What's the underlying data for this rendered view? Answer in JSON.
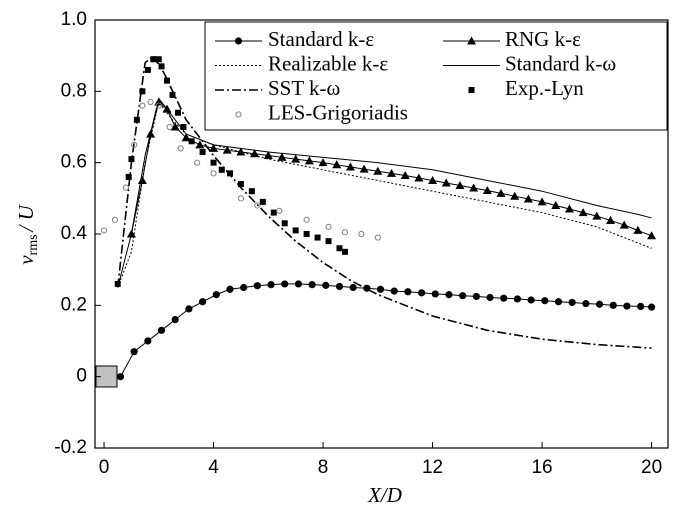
{
  "chart_data": {
    "type": "line",
    "xlabel": "X/D",
    "ylabel": {
      "symbol": "v",
      "subscript": "rms",
      "rest": "/ U"
    },
    "xlim": [
      -0.33,
      20.6
    ],
    "ylim": [
      -0.2,
      1.0
    ],
    "xticks": [
      0,
      4,
      8,
      12,
      16,
      20
    ],
    "yticks": [
      {
        "value": 1,
        "label": "1.0"
      },
      0.8,
      0.6,
      0.4,
      0.2,
      0,
      -0.2
    ],
    "grid": false,
    "legend": "top-right",
    "series": [
      {
        "name": "Standard k-ε",
        "color": "#000000",
        "line": "solid",
        "marker": "circle",
        "x": [
          0.6,
          1.1,
          1.6,
          2.1,
          2.6,
          3.1,
          3.6,
          4.1,
          4.6,
          5.1,
          5.6,
          6.1,
          6.6,
          7.1,
          7.6,
          8.1,
          8.6,
          9.1,
          9.6,
          10.1,
          10.6,
          11.1,
          11.6,
          12.1,
          12.6,
          13.1,
          13.6,
          14.1,
          14.6,
          15.1,
          15.6,
          16.1,
          16.6,
          17.1,
          17.6,
          18.1,
          18.6,
          19.1,
          19.6,
          20.0
        ],
        "values": [
          0,
          0.07,
          0.1,
          0.13,
          0.16,
          0.19,
          0.21,
          0.23,
          0.245,
          0.25,
          0.255,
          0.258,
          0.26,
          0.26,
          0.258,
          0.256,
          0.253,
          0.25,
          0.248,
          0.245,
          0.24,
          0.238,
          0.235,
          0.232,
          0.23,
          0.227,
          0.225,
          0.222,
          0.22,
          0.218,
          0.215,
          0.213,
          0.21,
          0.208,
          0.205,
          0.203,
          0.2,
          0.198,
          0.197,
          0.195
        ]
      },
      {
        "name": "RNG k-ε",
        "color": "#000000",
        "line": "solid",
        "marker": "triangle",
        "x": [
          1.0,
          1.4,
          1.7,
          2.0,
          2.3,
          2.6,
          3.0,
          3.5,
          4.0,
          4.5,
          5.0,
          5.5,
          6.0,
          6.5,
          7.0,
          7.5,
          8.0,
          8.5,
          9.0,
          9.5,
          10.0,
          10.5,
          11.0,
          11.5,
          12.0,
          12.5,
          13.0,
          13.5,
          14.0,
          14.5,
          15.0,
          15.5,
          16.0,
          16.5,
          17.0,
          17.5,
          18.0,
          18.5,
          19.0,
          19.5,
          20.0
        ],
        "values": [
          0.4,
          0.55,
          0.68,
          0.77,
          0.75,
          0.7,
          0.67,
          0.65,
          0.64,
          0.635,
          0.63,
          0.625,
          0.62,
          0.615,
          0.61,
          0.605,
          0.6,
          0.594,
          0.588,
          0.582,
          0.576,
          0.57,
          0.564,
          0.557,
          0.55,
          0.543,
          0.536,
          0.529,
          0.522,
          0.514,
          0.506,
          0.498,
          0.49,
          0.48,
          0.47,
          0.46,
          0.45,
          0.438,
          0.425,
          0.41,
          0.395
        ]
      },
      {
        "name": "Realizable k-ε",
        "color": "#000000",
        "line": "dotted",
        "marker": "none",
        "x": [
          0.5,
          1,
          1.5,
          2,
          2.5,
          3,
          4,
          6,
          8,
          10,
          12,
          14,
          16,
          18,
          20
        ],
        "values": [
          0.25,
          0.35,
          0.6,
          0.77,
          0.72,
          0.68,
          0.65,
          0.61,
          0.58,
          0.55,
          0.52,
          0.49,
          0.46,
          0.42,
          0.36
        ]
      },
      {
        "name": "Standard k-ω",
        "color": "#000000",
        "line": "solid",
        "marker": "none",
        "x": [
          0.5,
          1,
          1.5,
          2,
          2.5,
          3,
          4,
          6,
          8,
          10,
          12,
          14,
          16,
          18,
          19.5,
          20
        ],
        "values": [
          0.25,
          0.4,
          0.62,
          0.78,
          0.73,
          0.68,
          0.65,
          0.63,
          0.615,
          0.6,
          0.58,
          0.55,
          0.52,
          0.48,
          0.455,
          0.445
        ]
      },
      {
        "name": "SST k-ω",
        "color": "#000000",
        "line": "dashdot",
        "marker": "none",
        "x": [
          0.5,
          1,
          1.5,
          1.8,
          2.2,
          3,
          4,
          5,
          6,
          7,
          8,
          9,
          10,
          12,
          14,
          16,
          18,
          20
        ],
        "values": [
          0.25,
          0.6,
          0.88,
          0.9,
          0.85,
          0.72,
          0.62,
          0.53,
          0.45,
          0.38,
          0.32,
          0.27,
          0.23,
          0.17,
          0.13,
          0.105,
          0.09,
          0.08
        ]
      },
      {
        "name": "Exp.-Lyn",
        "color": "#000000",
        "line": "none",
        "marker": "square",
        "x": [
          0.5,
          0.9,
          1.0,
          1.2,
          1.4,
          1.6,
          1.8,
          2.0,
          2.1,
          2.3,
          2.5,
          2.7,
          2.9,
          3.2,
          3.6,
          4.0,
          4.3,
          4.6,
          5.0,
          5.4,
          5.8,
          6.2,
          6.6,
          7.0,
          7.4,
          7.8,
          8.2,
          8.6,
          8.8
        ],
        "values": [
          0.26,
          0.56,
          0.61,
          0.72,
          0.8,
          0.86,
          0.89,
          0.89,
          0.87,
          0.83,
          0.79,
          0.74,
          0.7,
          0.66,
          0.63,
          0.6,
          0.58,
          0.57,
          0.54,
          0.52,
          0.49,
          0.46,
          0.43,
          0.41,
          0.4,
          0.39,
          0.38,
          0.36,
          0.35
        ]
      },
      {
        "name": "LES-Grigoriadis",
        "color": "#808080",
        "line": "none",
        "marker": "open-circle",
        "x": [
          0,
          0.4,
          0.8,
          1.1,
          1.4,
          1.7,
          2.0,
          2.4,
          2.8,
          3.4,
          4.0,
          5.0,
          5.6,
          6.4,
          7.4,
          8.2,
          8.8,
          9.4,
          10.0
        ],
        "values": [
          0.41,
          0.44,
          0.53,
          0.65,
          0.76,
          0.77,
          0.76,
          0.7,
          0.64,
          0.6,
          0.57,
          0.5,
          0.48,
          0.465,
          0.44,
          0.42,
          0.405,
          0.4,
          0.39
        ]
      }
    ]
  }
}
